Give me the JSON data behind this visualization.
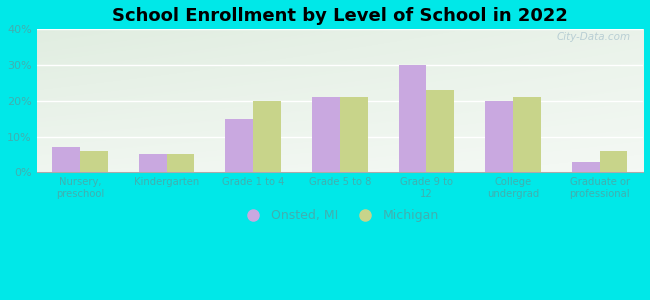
{
  "title": "School Enrollment by Level of School in 2022",
  "categories": [
    "Nursery,\npreschool",
    "Kindergarten",
    "Grade 1 to 4",
    "Grade 5 to 8",
    "Grade 9 to\n12",
    "College\nundergrad",
    "Graduate or\nprofessional"
  ],
  "onsted_values": [
    7,
    5,
    15,
    21,
    30,
    20,
    3
  ],
  "michigan_values": [
    6,
    5,
    20,
    21,
    23,
    21,
    6
  ],
  "onsted_color": "#c9a8e0",
  "michigan_color": "#c8d48a",
  "background_outer": "#00e8e8",
  "gradient_top_left": "#d6ecc8",
  "gradient_bottom_right": "#f0f0e8",
  "title_fontsize": 13,
  "tick_label_color": "#40b0b0",
  "legend_labels": [
    "Onsted, MI",
    "Michigan"
  ],
  "ylim": [
    0,
    40
  ],
  "yticks": [
    0,
    10,
    20,
    30,
    40
  ],
  "bar_width": 0.32,
  "watermark": "City-Data.com"
}
